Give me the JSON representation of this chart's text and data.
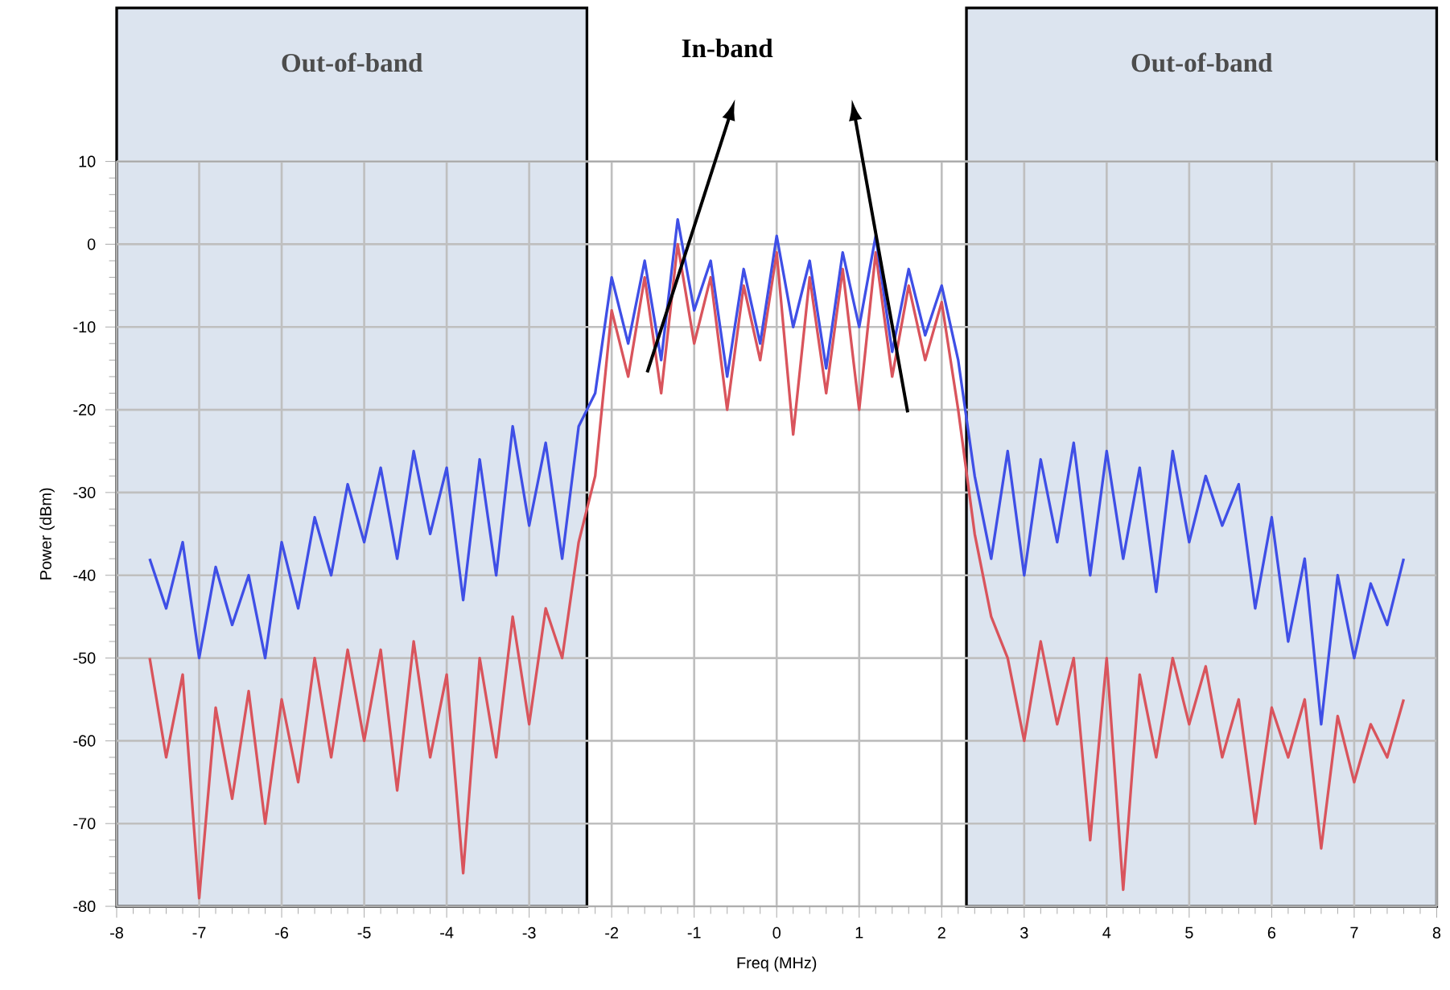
{
  "chart_data": {
    "type": "line",
    "xlabel": "Freq (MHz)",
    "ylabel": "Power (dBm)",
    "xlim": [
      -8,
      8
    ],
    "xticks": [
      -8,
      -7,
      -6,
      -5,
      -4,
      -3,
      -2,
      -1,
      0,
      1,
      2,
      3,
      4,
      5,
      6,
      7,
      8
    ],
    "ylim": [
      -80,
      10
    ],
    "yticks": [
      -80,
      -70,
      -60,
      -50,
      -40,
      -30,
      -20,
      -10,
      0,
      10
    ],
    "grid": true,
    "marker": "none",
    "line_style": "solid",
    "x": [
      -7.6,
      -7.4,
      -7.2,
      -7.0,
      -6.8,
      -6.6,
      -6.4,
      -6.2,
      -6.0,
      -5.8,
      -5.6,
      -5.4,
      -5.2,
      -5.0,
      -4.8,
      -4.6,
      -4.4,
      -4.2,
      -4.0,
      -3.8,
      -3.6,
      -3.4,
      -3.2,
      -3.0,
      -2.8,
      -2.6,
      -2.4,
      -2.2,
      -2.0,
      -1.8,
      -1.6,
      -1.4,
      -1.2,
      -1.0,
      -0.8,
      -0.6,
      -0.4,
      -0.2,
      0.0,
      0.2,
      0.4,
      0.6,
      0.8,
      1.0,
      1.2,
      1.4,
      1.6,
      1.8,
      2.0,
      2.2,
      2.4,
      2.6,
      2.8,
      3.0,
      3.2,
      3.4,
      3.6,
      3.8,
      4.0,
      4.2,
      4.4,
      4.6,
      4.8,
      5.0,
      5.2,
      5.4,
      5.6,
      5.8,
      6.0,
      6.2,
      6.4,
      6.6,
      6.8,
      7.0,
      7.2,
      7.4,
      7.6
    ],
    "series": [
      {
        "color": "#d9545c",
        "values": [
          -50,
          -62,
          -52,
          -79,
          -56,
          -67,
          -54,
          -70,
          -55,
          -65,
          -50,
          -62,
          -49,
          -60,
          -49,
          -66,
          -48,
          -62,
          -52,
          -76,
          -50,
          -62,
          -45,
          -58,
          -44,
          -50,
          -36,
          -28,
          -8,
          -16,
          -4,
          -18,
          0,
          -12,
          -4,
          -20,
          -5,
          -14,
          -1,
          -23,
          -4,
          -18,
          -3,
          -20,
          -1,
          -16,
          -5,
          -14,
          -7,
          -20,
          -35,
          -45,
          -50,
          -60,
          -48,
          -58,
          -50,
          -72,
          -50,
          -78,
          -52,
          -62,
          -50,
          -58,
          -51,
          -62,
          -55,
          -70,
          -56,
          -62,
          -55,
          -73,
          -57,
          -65,
          -58,
          -62,
          -55
        ]
      },
      {
        "color": "#3f4fe6",
        "values": [
          -38,
          -44,
          -36,
          -50,
          -39,
          -46,
          -40,
          -50,
          -36,
          -44,
          -33,
          -40,
          -29,
          -36,
          -27,
          -38,
          -25,
          -35,
          -27,
          -43,
          -26,
          -40,
          -22,
          -34,
          -24,
          -38,
          -22,
          -18,
          -4,
          -12,
          -2,
          -14,
          3,
          -8,
          -2,
          -16,
          -3,
          -12,
          1,
          -10,
          -2,
          -15,
          -1,
          -10,
          1,
          -13,
          -3,
          -11,
          -5,
          -14,
          -28,
          -38,
          -25,
          -40,
          -26,
          -36,
          -24,
          -40,
          -25,
          -38,
          -27,
          -42,
          -25,
          -36,
          -28,
          -34,
          -29,
          -44,
          -33,
          -48,
          -38,
          -58,
          -40,
          -50,
          -41,
          -46,
          -38
        ]
      }
    ],
    "bands": [
      {
        "axis": "x",
        "from": -8,
        "to": -2.3,
        "label": "Out-of-band",
        "color": "#dce4ef"
      },
      {
        "axis": "x",
        "from": 2.3,
        "to": 8,
        "label": "Out-of-band",
        "color": "#dce4ef"
      }
    ],
    "annotations": [
      "In-band"
    ]
  }
}
